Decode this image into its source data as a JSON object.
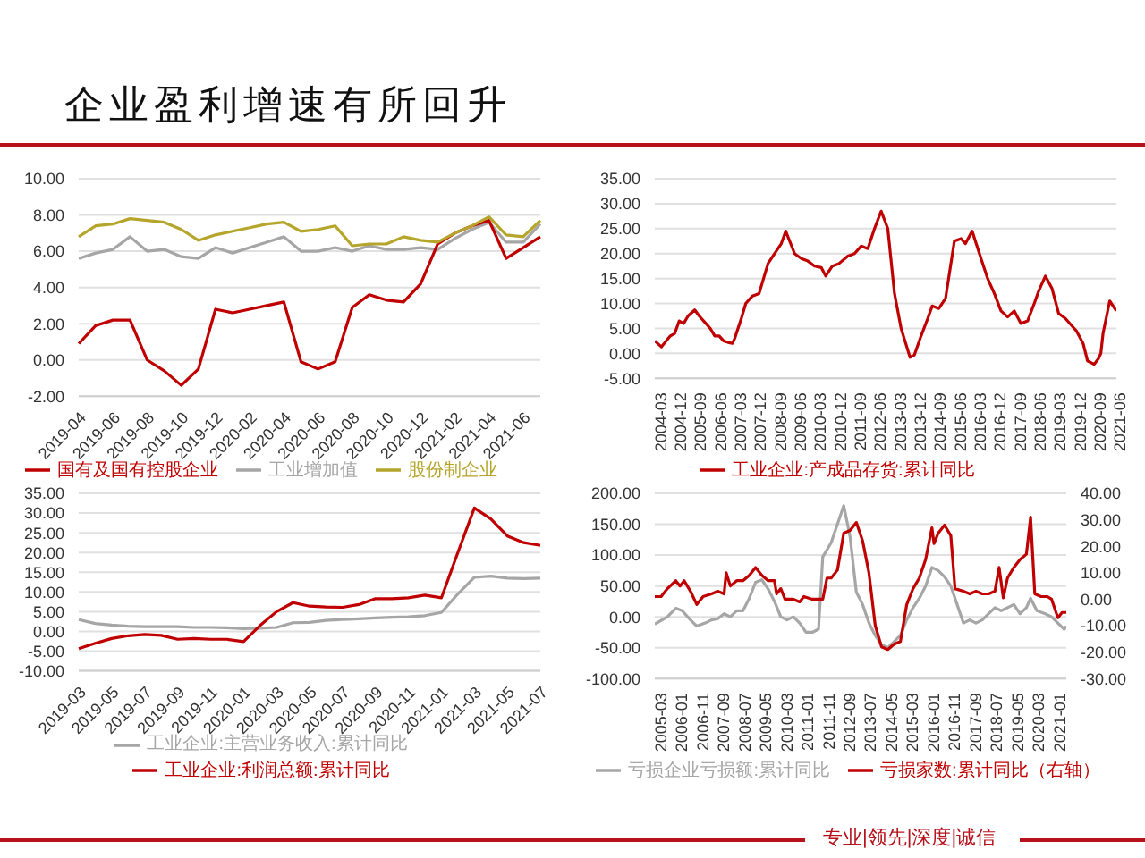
{
  "chart_data": [
    {
      "type": "line",
      "title": "企业盈利增速有所回升",
      "categories": [
        "2019-04",
        null,
        "2019-06",
        null,
        "2019-08",
        null,
        "2019-10",
        null,
        "2019-12",
        null,
        "2020-02",
        null,
        "2020-04",
        null,
        "2020-06",
        null,
        "2020-08",
        null,
        "2020-10",
        null,
        "2020-12",
        null,
        "2021-02",
        null,
        "2021-04",
        null,
        "2021-06",
        null
      ],
      "series": [
        {
          "name": "工业增加值",
          "color": "#a6a6a6",
          "values": [
            5.6,
            5.9,
            6.1,
            6.8,
            6.0,
            6.1,
            5.7,
            5.6,
            6.2,
            5.9,
            6.2,
            6.5,
            6.8,
            6.0,
            6.0,
            6.2,
            6.0,
            6.3,
            6.1,
            6.1,
            6.2,
            6.1,
            6.7,
            7.2,
            7.6,
            6.5,
            6.5,
            7.5
          ]
        },
        {
          "name": "国有及国有控股企业",
          "color": "#c00000",
          "values": [
            0.9,
            1.9,
            2.2,
            2.2,
            0.0,
            -0.6,
            -1.4,
            -0.5,
            2.8,
            2.6,
            2.8,
            3.0,
            3.2,
            -0.1,
            -0.5,
            -0.1,
            2.9,
            3.6,
            3.3,
            3.2,
            4.2,
            6.4,
            7.0,
            7.4,
            7.7,
            5.6,
            6.2,
            6.8
          ]
        },
        {
          "name": "股份制企业",
          "color": "#b5a52a",
          "values": [
            6.8,
            7.4,
            7.5,
            7.8,
            7.7,
            7.6,
            7.2,
            6.6,
            6.9,
            7.1,
            7.3,
            7.5,
            7.6,
            7.1,
            7.2,
            7.4,
            6.3,
            6.4,
            6.4,
            6.8,
            6.6,
            6.5,
            7.0,
            7.4,
            7.9,
            6.9,
            6.8,
            7.7
          ]
        }
      ],
      "ylim": [
        -2,
        10
      ],
      "yticks": [
        {
          "value": -2,
          "label": "-2.00"
        },
        {
          "value": 0,
          "label": "0.00"
        },
        {
          "value": 2,
          "label": "2.00"
        },
        {
          "value": 4,
          "label": "4.00"
        },
        {
          "value": 6,
          "label": "6.00"
        },
        {
          "value": 8,
          "label": "8.00"
        },
        {
          "value": 10,
          "label": "10.00"
        }
      ],
      "grid": "y",
      "legend": "bottom"
    },
    {
      "type": "line",
      "x": [
        "2004-03",
        "2004-06",
        "2004-10",
        "2004-12",
        "2005-02",
        "2005-04",
        "2005-06",
        "2005-09",
        "2005-11",
        "2006-02",
        "2006-04",
        "2006-06",
        "2006-08",
        "2006-10",
        "2006-12",
        "2007-02",
        "2007-03",
        "2007-06",
        "2007-08",
        "2007-11",
        "2008-02",
        "2008-06",
        "2008-09",
        "2008-12",
        "2009-02",
        "2009-06",
        "2009-09",
        "2009-12",
        "2010-03",
        "2010-06",
        "2010-08",
        "2010-11",
        "2011-02",
        "2011-06",
        "2011-09",
        "2011-12",
        "2012-03",
        "2012-06",
        "2012-09",
        "2012-12",
        "2013-03",
        "2013-06",
        "2013-10",
        "2013-12",
        "2014-03",
        "2014-06",
        "2014-08",
        "2014-11",
        "2015-02",
        "2015-06",
        "2015-09",
        "2015-11",
        "2016-02",
        "2016-06",
        "2016-09",
        "2016-12",
        "2017-03",
        "2017-06",
        "2017-09",
        "2017-12",
        "2018-03",
        "2018-06",
        "2018-08",
        "2018-11",
        "2019-02",
        "2019-05",
        "2019-08",
        "2020-01",
        "2020-04",
        "2020-06",
        "2020-09",
        "2020-11",
        "2020-12",
        "2021-01",
        "2021-04",
        "2021-07"
      ],
      "series": [
        {
          "name": "工业企业:产成品存货:累计同比",
          "color": "#c00000",
          "values": [
            2.5,
            1.3,
            3.5,
            4.0,
            6.5,
            6.0,
            7.5,
            8.7,
            7.5,
            6.0,
            5.0,
            3.5,
            3.5,
            2.5,
            2.2,
            2.0,
            3.0,
            7.0,
            10.0,
            11.5,
            12.0,
            18.0,
            20.0,
            22.0,
            24.5,
            20.0,
            19.0,
            18.5,
            17.5,
            17.2,
            15.5,
            17.5,
            18.0,
            19.5,
            20.0,
            21.5,
            21.0,
            25.0,
            28.5,
            25.0,
            12.0,
            5.0,
            -0.8,
            -0.3,
            3.5,
            7.0,
            9.5,
            9.0,
            11.0,
            22.5,
            23.0,
            22.0,
            24.5,
            19.0,
            15.0,
            12.0,
            8.5,
            7.3,
            8.5,
            6.0,
            6.5,
            10.0,
            12.5,
            15.5,
            13.0,
            8.0,
            7.0,
            4.5,
            2.0,
            -1.5,
            -2.2,
            -1.0,
            0.0,
            4.0,
            10.5,
            8.5
          ]
        }
      ],
      "xlim": [
        "2004-03",
        "2021-07"
      ],
      "xticks": [
        "2004-03",
        "2004-12",
        "2005-09",
        "2006-06",
        "2007-03",
        "2007-12",
        "2008-09",
        "2009-06",
        "2010-03",
        "2010-12",
        "2011-09",
        "2012-06",
        "2013-03",
        "2013-12",
        "2014-09",
        "2015-06",
        "2016-03",
        "2016-12",
        "2017-09",
        "2018-06",
        "2019-03",
        "2019-12",
        "2020-09",
        "2021-06"
      ],
      "ylim": [
        -5,
        35
      ],
      "yticks": [
        {
          "value": -5,
          "label": "-5.00"
        },
        {
          "value": 0,
          "label": "0.00"
        },
        {
          "value": 5,
          "label": "5.00"
        },
        {
          "value": 10,
          "label": "10.00"
        },
        {
          "value": 15,
          "label": "15.00"
        },
        {
          "value": 20,
          "label": "20.00"
        },
        {
          "value": 25,
          "label": "25.00"
        },
        {
          "value": 30,
          "label": "30.00"
        },
        {
          "value": 35,
          "label": "35.00"
        }
      ],
      "grid": "y",
      "legend": "bottom"
    },
    {
      "type": "line",
      "categories": [
        "2019-03",
        null,
        "2019-05",
        null,
        "2019-07",
        null,
        "2019-09",
        null,
        "2019-11",
        null,
        "2020-01",
        null,
        "2020-03",
        null,
        "2020-05",
        null,
        "2020-07",
        null,
        "2020-09",
        null,
        "2020-11",
        null,
        "2021-01",
        null,
        "2021-03",
        null,
        "2021-05",
        null,
        "2021-07"
      ],
      "series": [
        {
          "name": "工业企业:主营业务收入:累计同比",
          "color": "#a6a6a6",
          "values": [
            3.0,
            2.0,
            1.6,
            1.3,
            1.2,
            1.2,
            1.2,
            1.0,
            1.0,
            0.9,
            0.7,
            0.8,
            1.0,
            2.2,
            2.3,
            2.8,
            3.0,
            3.2,
            3.4,
            3.6,
            3.7,
            4.0,
            4.8,
            9.5,
            13.7,
            14.0,
            13.5,
            13.4,
            13.5
          ]
        },
        {
          "name": "工业企业:利润总额:累计同比",
          "color": "#c00000",
          "values": [
            -4.4,
            -3.0,
            -1.8,
            -1.1,
            -0.8,
            -1.0,
            -2.0,
            -1.8,
            -2.0,
            -2.0,
            -2.6,
            1.5,
            5.0,
            7.3,
            6.4,
            6.2,
            6.1,
            6.8,
            8.3,
            8.3,
            8.5,
            9.2,
            8.5,
            20.0,
            31.3,
            28.5,
            24.2,
            22.5,
            21.8
          ]
        }
      ],
      "ylim": [
        -10,
        35
      ],
      "yticks": [
        {
          "value": -10,
          "label": "-10.00"
        },
        {
          "value": -5,
          "label": "-5.00"
        },
        {
          "value": 0,
          "label": "0.00"
        },
        {
          "value": 5,
          "label": "5.00"
        },
        {
          "value": 10,
          "label": "10.00"
        },
        {
          "value": 15,
          "label": "15.00"
        },
        {
          "value": 20,
          "label": "20.00"
        },
        {
          "value": 25,
          "label": "25.00"
        },
        {
          "value": 30,
          "label": "30.00"
        },
        {
          "value": 35,
          "label": "35.00"
        }
      ],
      "grid": "y",
      "legend": "bottom"
    },
    {
      "type": "line",
      "series": [
        {
          "name": "亏损企业亏损额:累计同比",
          "color": "#a6a6a6",
          "x": [
            "2005-03",
            "2005-09",
            "2006-01",
            "2006-04",
            "2006-08",
            "2006-11",
            "2007-03",
            "2007-06",
            "2007-09",
            "2007-12",
            "2008-03",
            "2008-06",
            "2008-09",
            "2008-12",
            "2009-03",
            "2009-06",
            "2009-09",
            "2009-12",
            "2010-03",
            "2010-06",
            "2010-09",
            "2010-12",
            "2011-03",
            "2011-06",
            "2011-09",
            "2011-11",
            "2012-03",
            "2012-06",
            "2012-09",
            "2012-12",
            "2013-03",
            "2013-06",
            "2013-09",
            "2013-12",
            "2014-03",
            "2014-06",
            "2014-09",
            "2014-12",
            "2015-03",
            "2015-06",
            "2015-09",
            "2015-12",
            "2016-03",
            "2016-06",
            "2016-09",
            "2016-12",
            "2017-03",
            "2017-06",
            "2017-09",
            "2017-12",
            "2018-03",
            "2018-06",
            "2018-09",
            "2018-12",
            "2019-03",
            "2019-06",
            "2019-09",
            "2019-12",
            "2020-02",
            "2020-05",
            "2020-09",
            "2020-12",
            "2021-03",
            "2021-06",
            "2021-07"
          ],
          "values": [
            -12,
            0,
            14,
            10,
            -5,
            -15,
            -10,
            -5,
            -3,
            5,
            0,
            10,
            10,
            30,
            56,
            60,
            45,
            25,
            0,
            -5,
            0,
            -10,
            -25,
            -25,
            -20,
            97,
            120,
            150,
            180,
            130,
            40,
            20,
            -10,
            -30,
            -45,
            -50,
            -40,
            -30,
            -5,
            15,
            30,
            50,
            80,
            75,
            65,
            50,
            20,
            -10,
            -5,
            -10,
            -5,
            5,
            15,
            10,
            15,
            20,
            5,
            15,
            30,
            10,
            5,
            0,
            -10,
            -20,
            -15
          ]
        },
        {
          "name": "亏损家数:累计同比（右轴）",
          "color": "#c00000",
          "axis": "y2",
          "x": [
            "2005-03",
            "2005-06",
            "2005-09",
            "2006-01",
            "2006-03",
            "2006-05",
            "2006-08",
            "2006-11",
            "2007-02",
            "2007-06",
            "2007-09",
            "2007-12",
            "2008-01",
            "2008-03",
            "2008-06",
            "2008-09",
            "2008-12",
            "2009-03",
            "2009-06",
            "2009-09",
            "2009-12",
            "2010-01",
            "2010-03",
            "2010-05",
            "2010-09",
            "2010-12",
            "2011-02",
            "2011-06",
            "2011-09",
            "2011-11",
            "2012-01",
            "2012-03",
            "2012-06",
            "2012-09",
            "2012-12",
            "2013-03",
            "2013-06",
            "2013-09",
            "2013-12",
            "2014-03",
            "2014-06",
            "2014-09",
            "2014-12",
            "2015-03",
            "2015-06",
            "2015-09",
            "2015-12",
            "2016-03",
            "2016-04",
            "2016-06",
            "2016-09",
            "2016-12",
            "2017-02",
            "2017-06",
            "2017-09",
            "2017-12",
            "2018-03",
            "2018-06",
            "2018-09",
            "2018-11",
            "2019-01",
            "2019-03",
            "2019-06",
            "2019-09",
            "2019-12",
            "2020-02",
            "2020-04",
            "2020-07",
            "2020-10",
            "2020-12",
            "2021-03",
            "2021-05",
            "2021-07"
          ],
          "values": [
            1,
            1,
            4,
            7,
            5,
            7,
            3,
            -2,
            1,
            2,
            3,
            2,
            10,
            5,
            7,
            7,
            9,
            12,
            9,
            7,
            7,
            2,
            4,
            0,
            0,
            -1,
            1,
            0,
            0,
            0,
            8,
            8,
            11,
            25,
            26,
            29,
            22,
            10,
            -10,
            -18,
            -19,
            -17,
            -16,
            -2,
            4,
            8,
            15,
            27,
            21,
            25,
            28,
            24,
            4,
            3,
            2,
            3,
            2,
            2,
            3,
            12,
            0.5,
            8,
            12,
            15,
            17,
            31,
            2,
            1,
            1,
            0,
            -7,
            -5,
            -5
          ]
        }
      ],
      "xlim": [
        "2005-03",
        "2021-07"
      ],
      "xticks": [
        "2005-03",
        "2006-01",
        "2006-11",
        "2007-09",
        "2008-07",
        "2009-05",
        "2010-03",
        "2011-01",
        "2011-11",
        "2012-09",
        "2013-07",
        "2014-05",
        "2015-03",
        "2016-01",
        "2016-11",
        "2017-09",
        "2018-07",
        "2019-05",
        "2020-03",
        "2021-01"
      ],
      "ylim": [
        -100,
        200
      ],
      "yticks": [
        {
          "value": -100,
          "label": "-100.00"
        },
        {
          "value": -50,
          "label": "-50.00"
        },
        {
          "value": 0,
          "label": "0.00"
        },
        {
          "value": 50,
          "label": "50.00"
        },
        {
          "value": 100,
          "label": "100.00"
        },
        {
          "value": 150,
          "label": "150.00"
        },
        {
          "value": 200,
          "label": "200.00"
        }
      ],
      "y2lim": [
        -30,
        40
      ],
      "y2ticks": [
        {
          "value": -30,
          "label": "-30.00"
        },
        {
          "value": -20,
          "label": "-20.00"
        },
        {
          "value": -10,
          "label": "-10.00"
        },
        {
          "value": 0,
          "label": "0.00"
        },
        {
          "value": 10,
          "label": "10.00"
        },
        {
          "value": 20,
          "label": "20.00"
        },
        {
          "value": 30,
          "label": "30.00"
        },
        {
          "value": 40,
          "label": "40.00"
        }
      ],
      "grid": "y",
      "legend": "bottom",
      "annotations": [
        "专业|领先|深度|诚信"
      ]
    }
  ]
}
